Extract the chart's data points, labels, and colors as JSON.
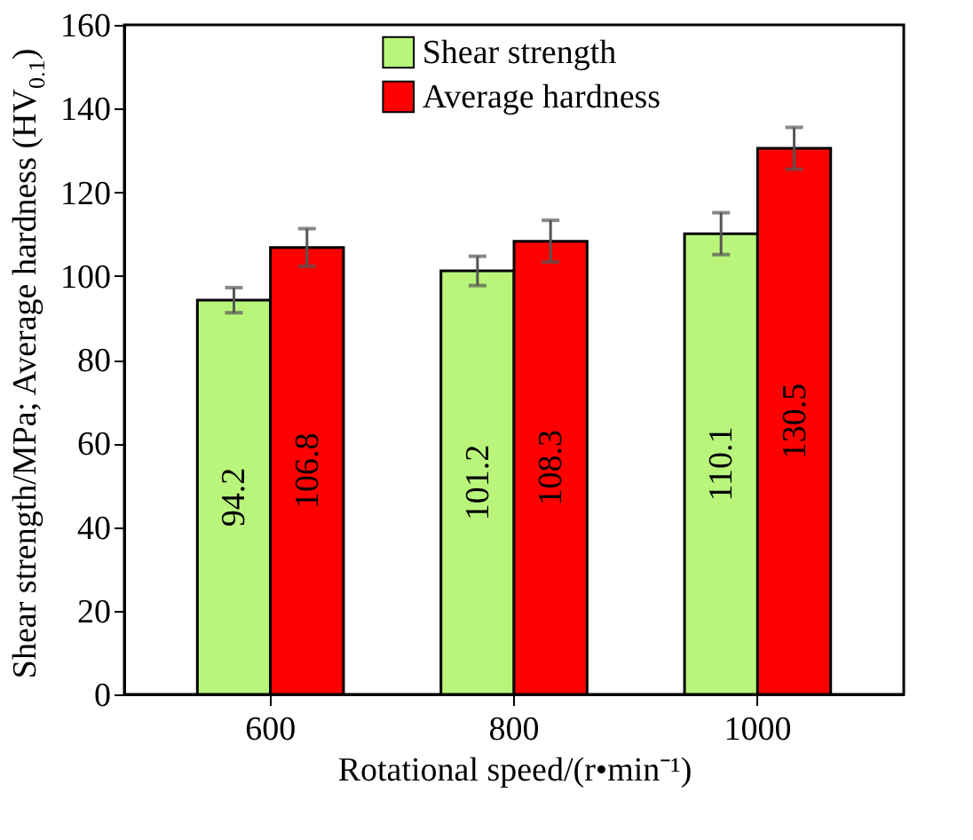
{
  "chart_data": {
    "type": "bar",
    "xlabel": "Rotational speed/(r•min⁻¹)",
    "ylabel": "Shear strength/MPa; Average hardness (HV$_{0.1}$)",
    "categories": [
      "600",
      "800",
      "1000"
    ],
    "series": [
      {
        "name": "Shear strength",
        "color": "#b9f57b",
        "values": [
          94.2,
          101.2,
          110.1
        ],
        "errors": [
          3,
          3.5,
          5
        ]
      },
      {
        "name": "Average hardness",
        "color": "#ff0000",
        "values": [
          106.8,
          108.3,
          130.5
        ],
        "errors": [
          4.5,
          5,
          5
        ]
      }
    ],
    "ylim": [
      0,
      160
    ],
    "yticks": [
      0,
      20,
      40,
      60,
      80,
      100,
      120,
      140,
      160
    ],
    "grid": false,
    "legend": "top",
    "data_labels": true
  }
}
